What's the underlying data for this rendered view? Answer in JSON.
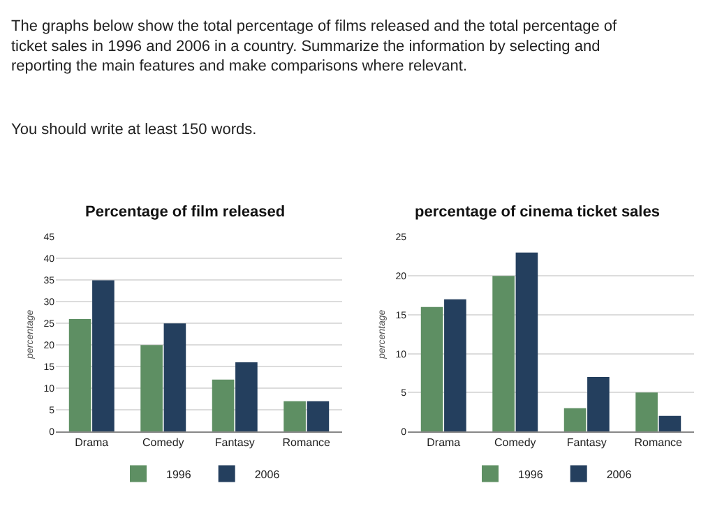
{
  "chart_data": [
    {
      "type": "bar",
      "title": "Percentage of film released",
      "ylabel": "percentage",
      "annotations": [
        "The graphs below show the total percentage of films released and the total percentage of ticket sales in 1996 and 2006 in a country. Summarize the information by selecting and reporting the main features and make comparisons where relevant.",
        "You should write at least 150 words."
      ],
      "categories": [
        "Drama",
        "Comedy",
        "Fantasy",
        "Romance"
      ],
      "series": [
        {
          "name": "1996",
          "color": "#5e8f63",
          "values": [
            26,
            20,
            12,
            7
          ]
        },
        {
          "name": "2006",
          "color": "#243f5e",
          "values": [
            35,
            25,
            16,
            7
          ]
        }
      ],
      "ylim": [
        0,
        45
      ],
      "yticks": [
        0,
        5,
        10,
        15,
        20,
        25,
        30,
        35,
        40,
        45
      ],
      "grid": "y",
      "legend": "bottom"
    },
    {
      "type": "bar",
      "title": "percentage of cinema ticket sales",
      "ylabel": "percentage",
      "categories": [
        "Drama",
        "Comedy",
        "Fantasy",
        "Romance"
      ],
      "series": [
        {
          "name": "1996",
          "color": "#5e8f63",
          "values": [
            16,
            20,
            3,
            5
          ]
        },
        {
          "name": "2006",
          "color": "#243f5e",
          "values": [
            17,
            23,
            7,
            2
          ]
        }
      ],
      "ylim": [
        0,
        25
      ],
      "yticks": [
        0,
        5,
        10,
        15,
        20,
        25
      ],
      "grid": "y",
      "legend": "bottom"
    }
  ]
}
